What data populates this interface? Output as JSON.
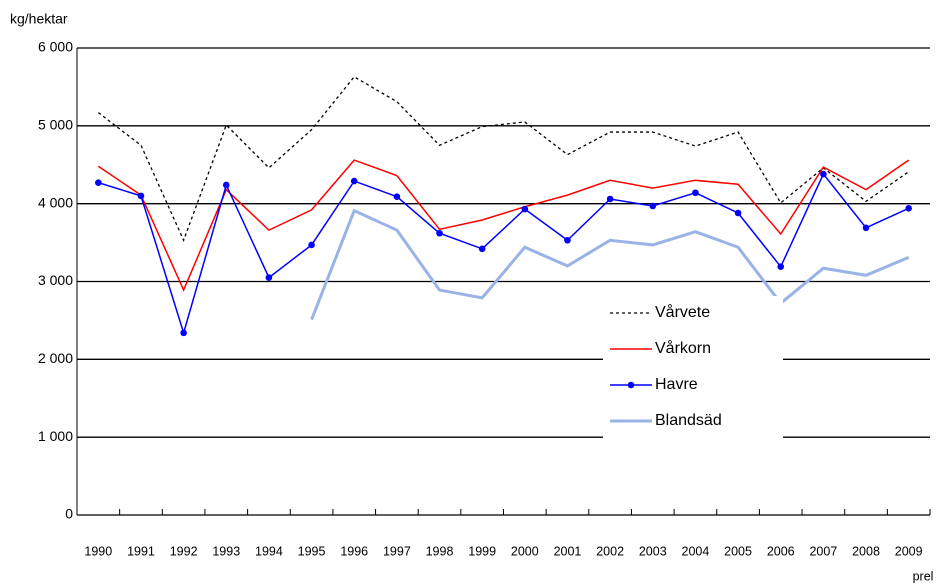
{
  "chart_data": {
    "type": "line",
    "y_label": "kg/hektar",
    "categories": [
      "1990",
      "1991",
      "1992",
      "1993",
      "1994",
      "1995",
      "1996",
      "1997",
      "1998",
      "1999",
      "2000",
      "2001",
      "2002",
      "2003",
      "2004",
      "2005",
      "2006",
      "2007",
      "2008",
      "2009"
    ],
    "note": "prel",
    "ylim": [
      0,
      6000
    ],
    "yticks": [
      0,
      {
        "value": 1000,
        "label": "1 000"
      },
      {
        "value": 2000,
        "label": "2 000"
      },
      {
        "value": 3000,
        "label": "3 000"
      },
      {
        "value": 4000,
        "label": "4 000"
      },
      {
        "value": 5000,
        "label": "5 000"
      },
      {
        "value": 6000,
        "label": "6 000"
      }
    ],
    "grid": true,
    "series": [
      {
        "name": "Vårvete",
        "color": "#000000",
        "dash": "dotted",
        "width": 1.3,
        "values": [
          5170,
          4750,
          3530,
          5010,
          4460,
          4950,
          5630,
          5310,
          4750,
          4990,
          5050,
          4630,
          4920,
          4920,
          4740,
          4920,
          4010,
          4460,
          4030,
          4410
        ]
      },
      {
        "name": "Vårkorn",
        "color": "#ff0000",
        "dash": "solid",
        "width": 1.5,
        "values": [
          4480,
          4110,
          2890,
          4180,
          3660,
          3920,
          4560,
          4360,
          3670,
          3790,
          3960,
          4110,
          4300,
          4200,
          4300,
          4250,
          3610,
          4470,
          4180,
          4560
        ]
      },
      {
        "name": "Havre",
        "color": "#0000ff",
        "dash": "solid",
        "width": 1.5,
        "markers": true,
        "values": [
          4270,
          4100,
          2340,
          4240,
          3050,
          3470,
          4290,
          4090,
          3620,
          3420,
          3930,
          3530,
          4060,
          3970,
          4140,
          3880,
          3190,
          4380,
          3690,
          3940
        ]
      },
      {
        "name": "Blandsäd",
        "color": "#99b3e6",
        "dash": "solid",
        "width": 3,
        "values": [
          null,
          null,
          null,
          null,
          null,
          2510,
          3910,
          3660,
          2890,
          2790,
          3440,
          3200,
          3530,
          3470,
          3640,
          3440,
          2720,
          3170,
          3080,
          3310
        ]
      }
    ]
  }
}
